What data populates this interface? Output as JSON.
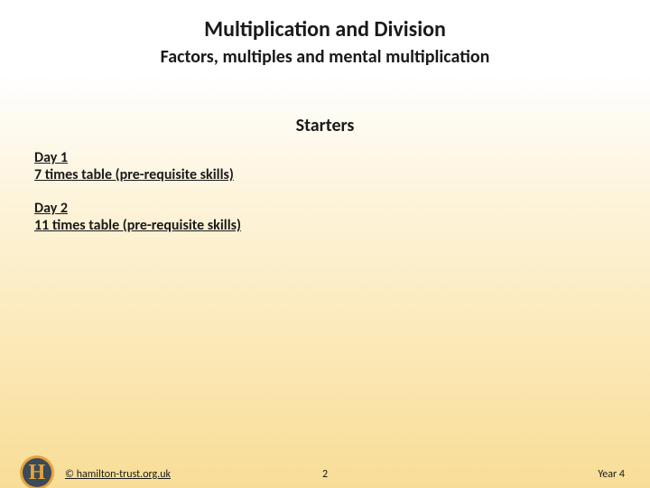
{
  "title": {
    "text": "Multiplication and Division",
    "fontsize": 24,
    "color": "#1a1a1a"
  },
  "subtitle": {
    "text": "Factors, multiples and mental multiplication",
    "fontsize": 20,
    "color": "#1a1a1a"
  },
  "section_heading": {
    "text": "Starters",
    "fontsize": 20,
    "color": "#1a1a1a"
  },
  "items": [
    {
      "day": "Day 1",
      "desc": "7 times table (pre-requisite skills)",
      "fontsize": 16
    },
    {
      "day": "Day 2",
      "desc": "11 times table (pre-requisite skills)",
      "fontsize": 16
    }
  ],
  "footer": {
    "copyright": "© hamilton-trust.org.uk",
    "page_number": "2",
    "year_label": "Year 4",
    "fontsize": 12,
    "color": "#1a1a1a"
  },
  "logo": {
    "letter": "H",
    "outer_color": "#e8a23c",
    "inner_color": "#3a4a58",
    "text_color": "#e8a23c",
    "fontsize": 24
  },
  "background": {
    "top_color": "#ffffff",
    "bottom_color": "#f8dd96"
  }
}
